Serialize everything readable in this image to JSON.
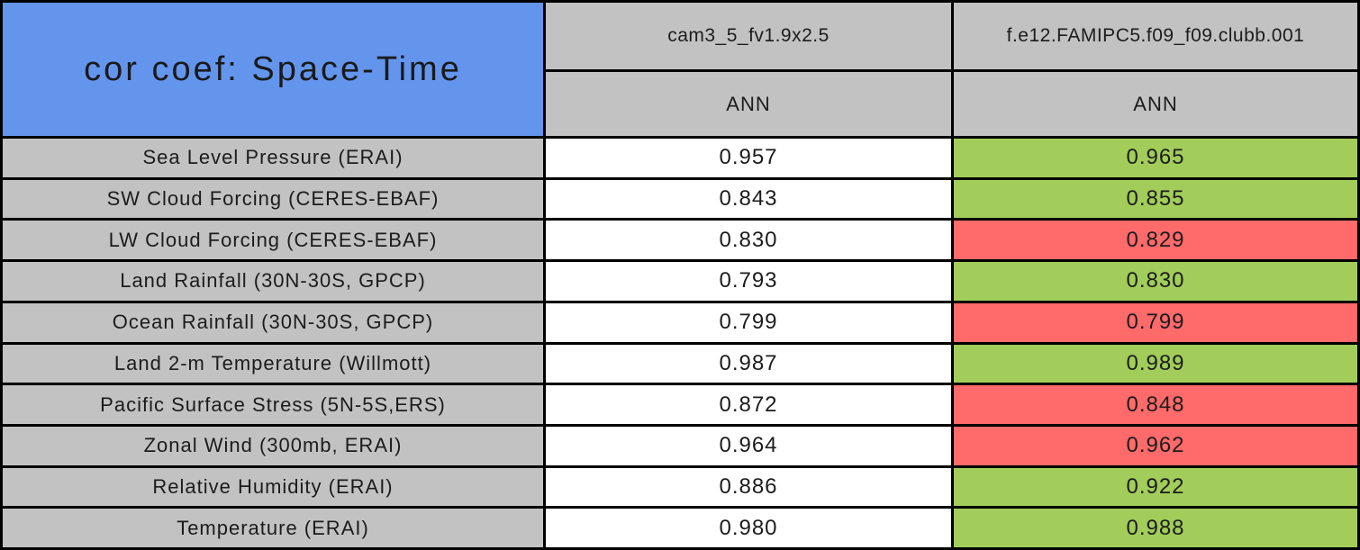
{
  "chart_data": {
    "type": "table",
    "title": "cor coef: Space-Time",
    "models": [
      {
        "name": "cam3_5_fv1.9x2.5",
        "season": "ANN"
      },
      {
        "name": "f.e12.FAMIPC5.f09_f09.clubb.001",
        "season": "ANN"
      }
    ],
    "rows": [
      {
        "label": "Sea Level Pressure (ERAI)",
        "model1": "0.957",
        "model2": "0.965",
        "model2_highlight": "green"
      },
      {
        "label": "SW Cloud Forcing (CERES-EBAF)",
        "model1": "0.843",
        "model2": "0.855",
        "model2_highlight": "green"
      },
      {
        "label": "LW Cloud Forcing (CERES-EBAF)",
        "model1": "0.830",
        "model2": "0.829",
        "model2_highlight": "red"
      },
      {
        "label": "Land Rainfall (30N-30S, GPCP)",
        "model1": "0.793",
        "model2": "0.830",
        "model2_highlight": "green"
      },
      {
        "label": "Ocean Rainfall (30N-30S, GPCP)",
        "model1": "0.799",
        "model2": "0.799",
        "model2_highlight": "red"
      },
      {
        "label": "Land 2-m Temperature (Willmott)",
        "model1": "0.987",
        "model2": "0.989",
        "model2_highlight": "green"
      },
      {
        "label": "Pacific Surface Stress (5N-5S,ERS)",
        "model1": "0.872",
        "model2": "0.848",
        "model2_highlight": "red"
      },
      {
        "label": "Zonal Wind (300mb, ERAI)",
        "model1": "0.964",
        "model2": "0.962",
        "model2_highlight": "red"
      },
      {
        "label": "Relative Humidity (ERAI)",
        "model1": "0.886",
        "model2": "0.922",
        "model2_highlight": "green"
      },
      {
        "label": "Temperature (ERAI)",
        "model1": "0.980",
        "model2": "0.988",
        "model2_highlight": "green"
      }
    ],
    "colors": {
      "title_bg": "#6495ED",
      "header_bg": "#C2C2C2",
      "value_bg": "#FFFFFF",
      "green": "#A2CD5A",
      "red": "#FF6A6A",
      "border": "#000000",
      "text": "#1C1C1C"
    }
  }
}
